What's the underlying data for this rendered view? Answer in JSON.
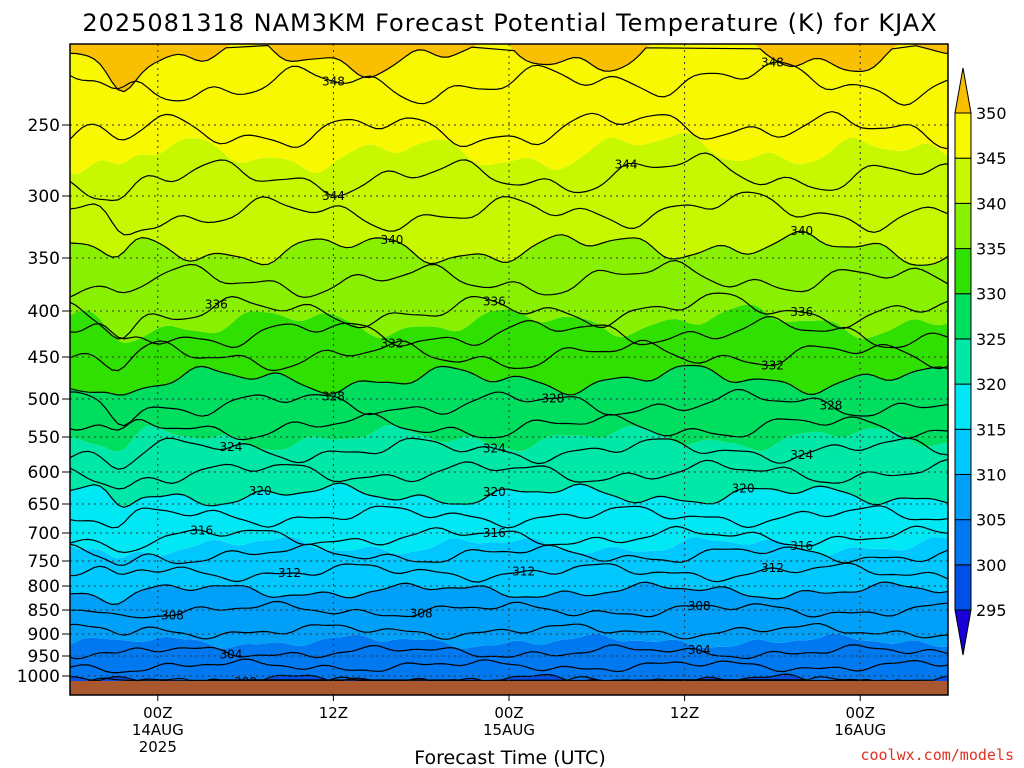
{
  "chart_data": {
    "type": "heatmap",
    "title": "2025081318 NAM3KM Forecast Potential Temperature (K) for KJAX",
    "xlabel": "Forecast Time (UTC)",
    "ylabel": "",
    "y_ticks": [
      250,
      300,
      350,
      400,
      450,
      500,
      550,
      600,
      650,
      700,
      750,
      800,
      850,
      900,
      950,
      1000
    ],
    "y_range": [
      200,
      1010
    ],
    "x_range_hours": [
      -6,
      54
    ],
    "x_ticks": [
      {
        "hour": 0,
        "line1": "00Z",
        "line2": "14AUG",
        "line3": "2025"
      },
      {
        "hour": 12,
        "line1": "12Z",
        "line2": "",
        "line3": ""
      },
      {
        "hour": 24,
        "line1": "00Z",
        "line2": "15AUG",
        "line3": ""
      },
      {
        "hour": 36,
        "line1": "12Z",
        "line2": "",
        "line3": ""
      },
      {
        "hour": 48,
        "line1": "00Z",
        "line2": "16AUG",
        "line3": ""
      }
    ],
    "colorbar": {
      "levels": [
        295,
        300,
        305,
        310,
        315,
        320,
        325,
        330,
        335,
        340,
        345,
        350
      ],
      "colors": [
        "#1800d8",
        "#0050e8",
        "#0078f0",
        "#00a0f8",
        "#00c8ff",
        "#00e8f4",
        "#00e8a8",
        "#00de60",
        "#30e000",
        "#88f000",
        "#c8f800",
        "#f8f800",
        "#f8c000"
      ]
    },
    "contour_labels": [
      {
        "value": "348",
        "hour": 12
      },
      {
        "value": "348",
        "hour": 42
      },
      {
        "value": "344",
        "hour": 12
      },
      {
        "value": "344",
        "hour": 32
      },
      {
        "value": "340",
        "hour": 16
      },
      {
        "value": "340",
        "hour": 44
      },
      {
        "value": "336",
        "hour": 4
      },
      {
        "value": "336",
        "hour": 23
      },
      {
        "value": "336",
        "hour": 44
      },
      {
        "value": "332",
        "hour": 16
      },
      {
        "value": "332",
        "hour": 42
      },
      {
        "value": "328",
        "hour": 12
      },
      {
        "value": "328",
        "hour": 27
      },
      {
        "value": "328",
        "hour": 46
      },
      {
        "value": "324",
        "hour": 5
      },
      {
        "value": "324",
        "hour": 23
      },
      {
        "value": "324",
        "hour": 44
      },
      {
        "value": "320",
        "hour": 7
      },
      {
        "value": "320",
        "hour": 23
      },
      {
        "value": "320",
        "hour": 40
      },
      {
        "value": "316",
        "hour": 3
      },
      {
        "value": "316",
        "hour": 23
      },
      {
        "value": "316",
        "hour": 44
      },
      {
        "value": "312",
        "hour": 9
      },
      {
        "value": "312",
        "hour": 25
      },
      {
        "value": "312",
        "hour": 42
      },
      {
        "value": "308",
        "hour": 1
      },
      {
        "value": "308",
        "hour": 18
      },
      {
        "value": "308",
        "hour": 37
      },
      {
        "value": "304",
        "hour": 5
      },
      {
        "value": "304",
        "hour": 37
      },
      {
        "value": "300",
        "hour": 6
      }
    ],
    "credit": "coolwx.com/models"
  }
}
